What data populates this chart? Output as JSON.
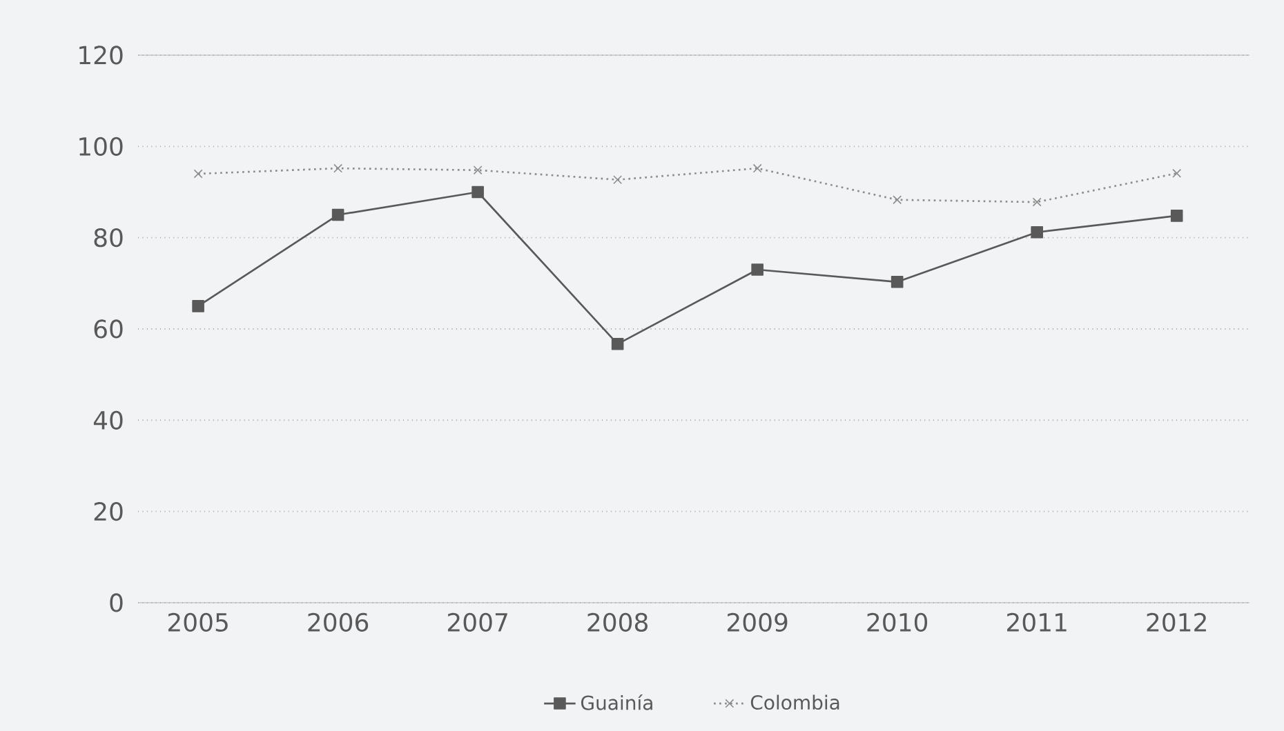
{
  "chart_data": {
    "type": "line",
    "categories": [
      "2005",
      "2006",
      "2007",
      "2008",
      "2009",
      "2010",
      "2011",
      "2012"
    ],
    "series": [
      {
        "name": "Guainía",
        "color": "#595959",
        "marker": "square",
        "line_style": "solid",
        "values": [
          65,
          85,
          90,
          56.7,
          73,
          70.3,
          81.2,
          84.8
        ]
      },
      {
        "name": "Colombia",
        "color": "#8c8c8c",
        "marker": "cross",
        "line_style": "dotted",
        "values": [
          94,
          95.2,
          94.8,
          92.7,
          95.2,
          88.3,
          87.8,
          94.1
        ]
      }
    ],
    "ylim": [
      0,
      120
    ],
    "yticks": [
      0,
      20,
      40,
      60,
      80,
      100,
      120
    ],
    "grid": "y",
    "legend": "bottom"
  }
}
